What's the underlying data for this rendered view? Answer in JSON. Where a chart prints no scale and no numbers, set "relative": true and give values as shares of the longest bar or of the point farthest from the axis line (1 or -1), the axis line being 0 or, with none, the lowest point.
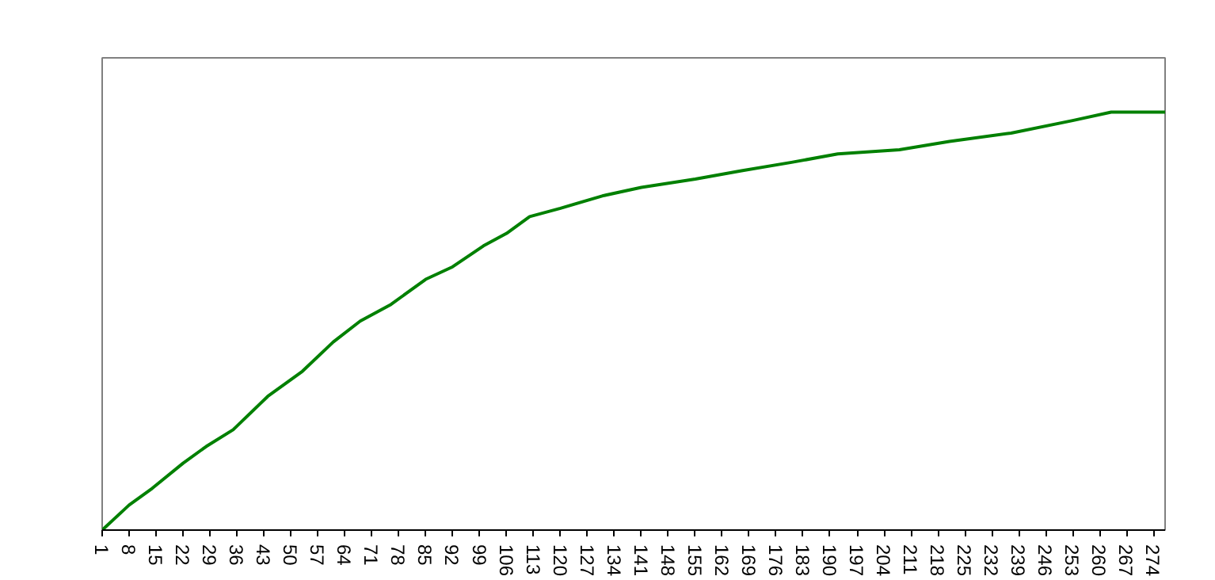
{
  "chart_data": {
    "type": "line",
    "relative": true,
    "xlim": [
      1,
      277
    ],
    "xticks": [
      1,
      8,
      15,
      22,
      29,
      36,
      43,
      50,
      57,
      64,
      71,
      78,
      85,
      92,
      99,
      106,
      113,
      120,
      127,
      134,
      141,
      148,
      155,
      162,
      169,
      176,
      183,
      190,
      197,
      204,
      211,
      218,
      225,
      232,
      239,
      246,
      253,
      260,
      267,
      274
    ],
    "x": [
      1,
      8,
      14,
      22,
      28,
      35,
      44,
      53,
      61,
      68,
      76,
      85,
      92,
      100,
      106,
      112,
      120,
      131,
      141,
      155,
      167,
      180,
      192,
      208,
      221,
      237,
      253,
      263,
      277
    ],
    "series": [
      {
        "color": "#008000",
        "values": [
          0,
          0.06,
          0.1,
          0.16,
          0.2,
          0.24,
          0.32,
          0.38,
          0.45,
          0.5,
          0.54,
          0.6,
          0.63,
          0.68,
          0.71,
          0.75,
          0.77,
          0.8,
          0.82,
          0.84,
          0.86,
          0.88,
          0.9,
          0.91,
          0.93,
          0.95,
          0.98,
          1.0,
          1.0
        ]
      }
    ],
    "grid": false,
    "line_style": "solid"
  }
}
